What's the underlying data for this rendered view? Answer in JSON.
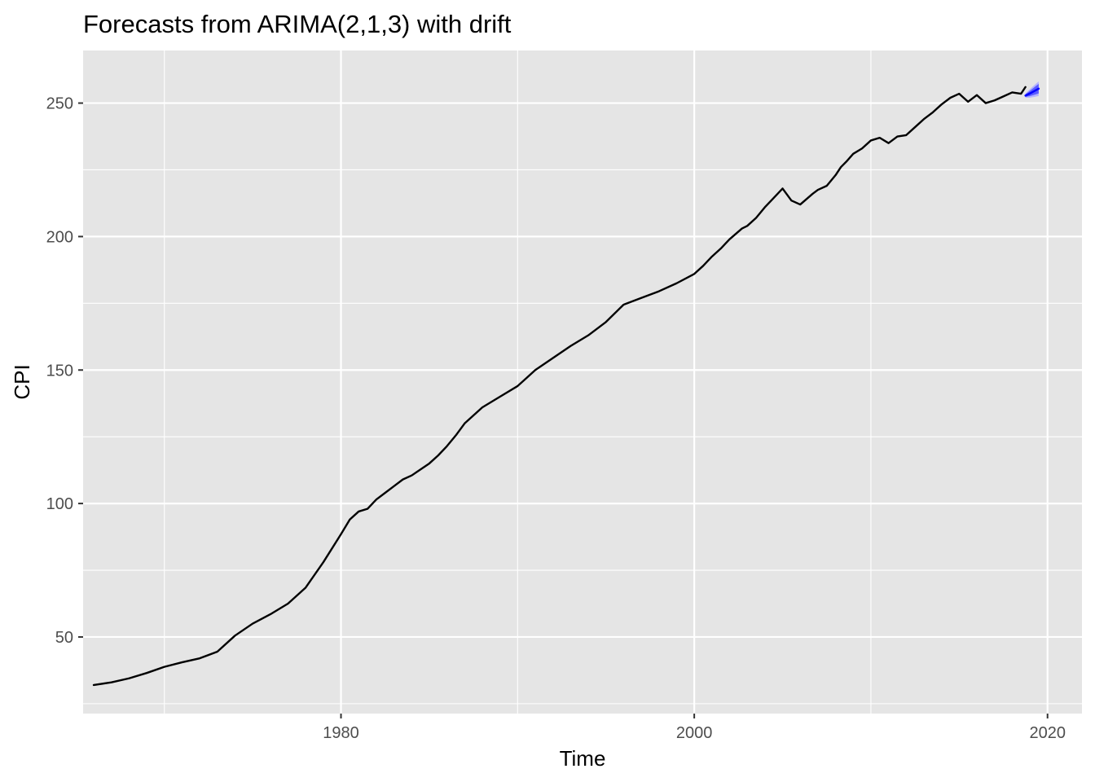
{
  "chart_data": {
    "type": "line",
    "title": "Forecasts from ARIMA(2,1,3) with drift",
    "xlabel": "Time",
    "ylabel": "CPI",
    "xlim": [
      1965.4,
      2021.95
    ],
    "ylim": [
      21.3,
      269.7
    ],
    "x_ticks": [
      1980,
      2000,
      2020
    ],
    "x_tick_labels": [
      "1980",
      "2000",
      "2020"
    ],
    "x_minor_ticks": [
      1970,
      1990,
      2010
    ],
    "y_ticks": [
      50,
      100,
      150,
      200,
      250
    ],
    "y_tick_labels": [
      "50",
      "100",
      "150",
      "200",
      "250"
    ],
    "y_minor_ticks": [
      25,
      75,
      125,
      175,
      225
    ],
    "grid": true,
    "legend": "none",
    "colors": {
      "panel_background": "#E5E5E5",
      "grid_line": "#FFFFFF",
      "series_line": "#000000",
      "forecast_line": "#0000FF",
      "interval_80": "#5A5AFF",
      "interval_95": "#B4B4FF",
      "tick_label": "#4D4D4D"
    },
    "series": [
      {
        "name": "CPI",
        "x": [
          1966.0,
          1967.0,
          1968.0,
          1969.0,
          1970.0,
          1971.0,
          1972.0,
          1973.0,
          1974.0,
          1975.0,
          1976.0,
          1977.0,
          1978.0,
          1979.0,
          1980.0,
          1980.5,
          1981.0,
          1981.5,
          1982.0,
          1982.5,
          1983.0,
          1983.5,
          1984.0,
          1985.0,
          1985.5,
          1986.0,
          1986.5,
          1987.0,
          1988.0,
          1989.0,
          1990.0,
          1990.5,
          1991.0,
          1992.0,
          1993.0,
          1994.0,
          1995.0,
          1996.0,
          1997.0,
          1998.0,
          1999.0,
          2000.0,
          2000.5,
          2001.0,
          2001.5,
          2002.0,
          2002.7,
          2003.0,
          2003.5,
          2004.0,
          2004.5,
          2005.0,
          2005.5,
          2006.0,
          2006.7,
          2007.0,
          2007.5,
          2008.0,
          2008.3,
          2008.6,
          2009.0,
          2009.5,
          2010.0,
          2010.5,
          2011.0,
          2011.5,
          2012.0,
          2012.5,
          2013.0,
          2013.5,
          2014.0,
          2014.5,
          2015.0,
          2015.5,
          2016.0,
          2016.5,
          2017.0,
          2017.5,
          2018.0,
          2018.5,
          2018.75
        ],
        "values": [
          32.0,
          33.0,
          34.5,
          36.5,
          38.8,
          40.5,
          42.0,
          44.5,
          50.5,
          55.0,
          58.5,
          62.5,
          68.5,
          78.0,
          88.5,
          94.0,
          97.0,
          98.0,
          101.5,
          104.0,
          106.5,
          109.0,
          110.5,
          115.0,
          118.0,
          121.5,
          125.5,
          130.0,
          136.0,
          140.0,
          144.0,
          147.0,
          150.0,
          154.5,
          159.0,
          163.0,
          168.0,
          174.5,
          177.0,
          179.5,
          182.5,
          186.0,
          189.0,
          192.5,
          195.5,
          199.0,
          203.0,
          204.0,
          207.0,
          211.0,
          214.5,
          218.0,
          213.5,
          212.0,
          216.0,
          217.5,
          219.0,
          223.0,
          226.0,
          228.0,
          231.0,
          233.0,
          236.0,
          237.0,
          235.0,
          237.5,
          238.0,
          241.0,
          244.0,
          246.5,
          249.5,
          252.0,
          253.5,
          250.5,
          253.0,
          250.0,
          251.0,
          252.5,
          254.0,
          253.5,
          256.0
        ]
      },
      {
        "name": "Point forecast",
        "x": [
          2018.75,
          2019.0,
          2019.25,
          2019.5
        ],
        "values": [
          252.8,
          253.6,
          254.5,
          255.4
        ]
      },
      {
        "name": "80% interval",
        "x": [
          2018.75,
          2019.0,
          2019.25,
          2019.5
        ],
        "lower": [
          252.3,
          252.6,
          253.1,
          253.6
        ],
        "upper": [
          253.3,
          254.6,
          255.9,
          257.2
        ]
      },
      {
        "name": "95% interval",
        "x": [
          2018.75,
          2019.0,
          2019.25,
          2019.5
        ],
        "lower": [
          252.0,
          252.0,
          252.3,
          252.7
        ],
        "upper": [
          253.6,
          255.2,
          256.7,
          258.1
        ]
      }
    ]
  }
}
